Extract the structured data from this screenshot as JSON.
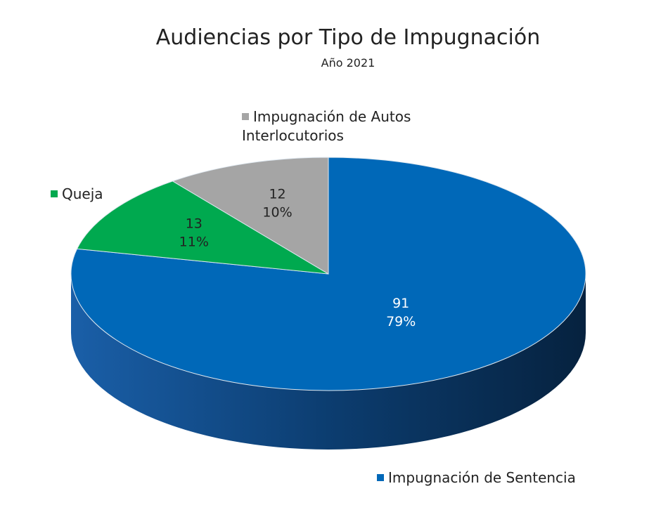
{
  "chart_data": {
    "type": "pie",
    "title": "Audiencias por Tipo de Impugnación",
    "subtitle": "Año 2021",
    "style": "3d",
    "slices": [
      {
        "label": "Impugnación de Sentencia",
        "value": 91,
        "percent": "79%",
        "color": "#0068b8"
      },
      {
        "label": "Queja",
        "value": 13,
        "percent": "11%",
        "color": "#00a94f"
      },
      {
        "label": "Impugnación de Autos Interlocutorios",
        "value": 12,
        "percent": "10%",
        "color": "#a5a5a5"
      }
    ]
  }
}
